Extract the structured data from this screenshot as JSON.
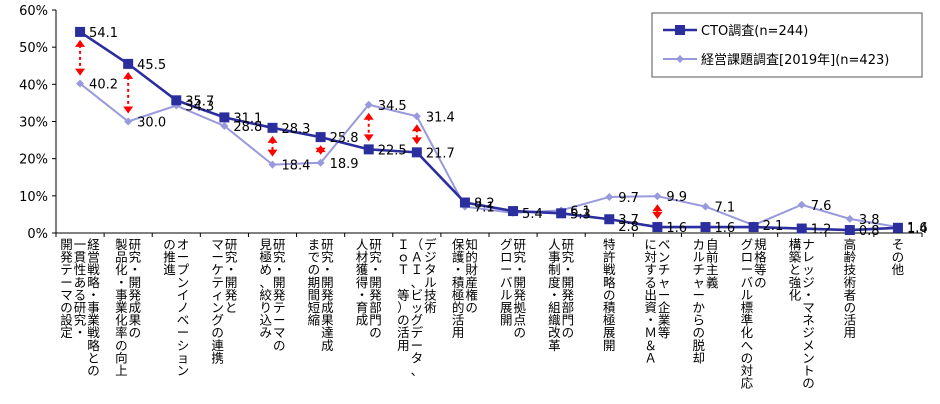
{
  "chart_data": {
    "type": "line",
    "ylim": [
      0,
      60
    ],
    "yticks": [
      "0%",
      "10%",
      "20%",
      "30%",
      "40%",
      "50%",
      "60%"
    ],
    "grid": false,
    "legend_placement": "top-right",
    "categories": [
      [
        "経営戦略・事業戦略との",
        "一貫性ある研究・",
        "開発テーマの設定"
      ],
      [
        "研究・開発成果の",
        "製品化・事業化率の向上"
      ],
      [
        "オープンイノベーション",
        "の推進"
      ],
      [
        "研究・開発と",
        "マーケティングの連携"
      ],
      [
        "研究・開発テーマの",
        "見極め、絞り込み"
      ],
      [
        "研究・開発成果達成",
        "までの期間短縮"
      ],
      [
        "研究・開発部門の",
        "人材獲得・育成"
      ],
      [
        "デジタル技術",
        "（ＡＩ、ビッグデータ、",
        "ＩｏＴ　等）の活用"
      ],
      [
        "知的財産権の",
        "保護・積極的活用"
      ],
      [
        "研究・開発拠点の",
        "グローバル展開"
      ],
      [
        "研究・開発部門の",
        "人事制度・組織改革"
      ],
      [
        "特許戦略の積極展開"
      ],
      [
        "ベンチャー企業等",
        "に対する出資・Ｍ＆Ａ"
      ],
      [
        "自前主義",
        "カルチャーからの脱却"
      ],
      [
        "規格等の",
        "グローバル標準化への対応"
      ],
      [
        "ナレッジ・マネジメントの",
        "構築と強化"
      ],
      [
        "高齢技術者の活用"
      ],
      [
        "その他"
      ]
    ],
    "series": [
      {
        "name": "CTO調査(n=244)",
        "color": "#2b2f9e",
        "marker": "square",
        "values": [
          54.1,
          45.5,
          35.7,
          31.1,
          28.3,
          25.8,
          22.5,
          21.7,
          8.2,
          5.9,
          5.3,
          3.7,
          1.6,
          1.6,
          1.6,
          1.2,
          0.8,
          1.4
        ],
        "labels": [
          "54.1",
          "45.5",
          "35.7",
          "31.1",
          "28.3",
          "25.8",
          "22.5",
          "21.7",
          "8.2",
          "",
          "5.3",
          "3.7",
          "1.6",
          "1.6",
          "",
          "1.2",
          "0.8",
          "1.4"
        ]
      },
      {
        "name": "経営課題調査[2019年](n=423)",
        "color": "#9999dd",
        "marker": "diamond",
        "values": [
          40.2,
          30.0,
          34.3,
          28.8,
          18.4,
          18.9,
          34.5,
          31.4,
          7.1,
          5.4,
          6.1,
          9.7,
          9.9,
          7.1,
          2.1,
          7.6,
          3.8,
          1.6
        ],
        "labels": [
          "40.2",
          "30.0",
          "34.3",
          "28.8",
          "18.4",
          "18.9",
          "34.5",
          "31.4",
          "7.1",
          "5.4",
          "6.1",
          "9.7",
          "9.9",
          "7.1",
          "2.1",
          "7.6",
          "3.8",
          "1.6"
        ]
      }
    ],
    "extra_labels": [
      "2.8"
    ],
    "gap_arrows_at": [
      0,
      1,
      4,
      5,
      6,
      7,
      12
    ]
  }
}
